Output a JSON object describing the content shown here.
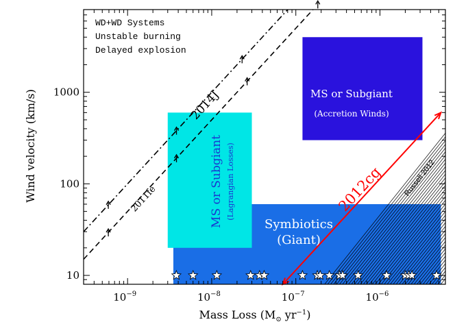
{
  "chart_data": {
    "type": "scatter",
    "xscale": "log",
    "yscale": "log",
    "xlabel_main": "Mass Loss (M",
    "xlabel_sun": "⊙",
    "xlabel_unit": " yr",
    "xlabel_exp": "−1",
    "xlabel_close": ")",
    "ylabel": "Wind velocity (km/s)",
    "xlim": [
      3e-10,
      6e-06
    ],
    "ylim": [
      8,
      8000
    ],
    "x_ticks": [
      {
        "value": 1e-09,
        "base": "10",
        "exp": "−9"
      },
      {
        "value": 1e-08,
        "base": "10",
        "exp": "−8"
      },
      {
        "value": 1e-07,
        "base": "10",
        "exp": "−7"
      },
      {
        "value": 1e-06,
        "base": "10",
        "exp": "−6"
      }
    ],
    "y_ticks": [
      {
        "value": 10,
        "label": "10"
      },
      {
        "value": 100,
        "label": "100"
      },
      {
        "value": 1000,
        "label": "1000"
      }
    ],
    "legend_lines": [
      "WD+WD Systems",
      "Unstable burning",
      "Delayed explosion"
    ],
    "regions": [
      {
        "name": "symbiotics-giant",
        "label1": "Symbiotics",
        "label2": "(Giant)",
        "color": "#1a6ee6",
        "x": [
          3.5e-09,
          5.3e-06
        ],
        "y": [
          8,
          60
        ]
      },
      {
        "name": "ms-lagrangian",
        "label1": "MS or Subgiant",
        "label2": "(Lagrangian Losses)",
        "color": "#00e6e6",
        "x": [
          3e-09,
          3e-08
        ],
        "y": [
          20,
          600
        ]
      },
      {
        "name": "ms-accretion",
        "label1": "MS or Subgiant",
        "label2": "(Accretion Winds)",
        "color": "#2a12dd",
        "x": [
          1.2e-07,
          3.2e-06
        ],
        "y": [
          300,
          4000
        ]
      }
    ],
    "lines": [
      {
        "name": "2014J",
        "label": "2014J",
        "style": "dashdot",
        "start": [
          3e-10,
          30
        ],
        "slope": 1
      },
      {
        "name": "2011fe",
        "label": "2011fe",
        "style": "dashed",
        "start": [
          3e-10,
          15
        ],
        "slope": 1
      }
    ],
    "sn2012cg": {
      "label": "2012cg",
      "color": "#ff0000",
      "start": [
        7e-08,
        8
      ],
      "end": [
        5.3e-06,
        600
      ]
    },
    "russell": {
      "label": "Russell 2012",
      "count": 40,
      "x_start": 2.2e-07,
      "x_end": 5.3e-06,
      "slope": 1.15
    },
    "stars": [
      3.8e-09,
      6e-09,
      1.15e-08,
      2.9e-08,
      3.7e-08,
      4.2e-08,
      1.2e-07,
      1.8e-07,
      1.95e-07,
      2.5e-07,
      3.3e-07,
      3.6e-07,
      5.5e-07,
      1.2e-06,
      2e-06,
      2.2e-06,
      2.4e-06,
      4.7e-06
    ],
    "star_y": 10
  }
}
